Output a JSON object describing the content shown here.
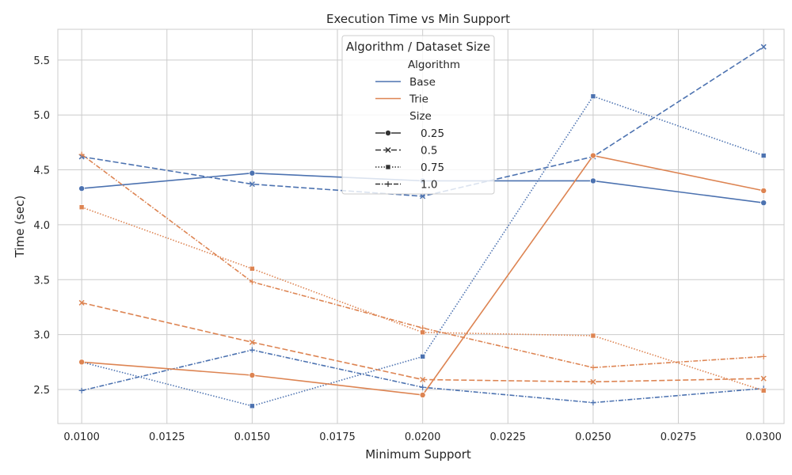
{
  "chart_data": {
    "type": "line",
    "title": "Execution Time vs Min Support",
    "xlabel": "Minimum Support",
    "ylabel": "Time (sec)",
    "x": [
      0.01,
      0.015,
      0.02,
      0.025,
      0.03
    ],
    "xlim": [
      0.0093,
      0.0306
    ],
    "ylim": [
      2.19,
      5.78
    ],
    "xticks": [
      "0.0100",
      "0.0125",
      "0.0150",
      "0.0175",
      "0.0200",
      "0.0225",
      "0.0250",
      "0.0275",
      "0.0300"
    ],
    "xtick_values": [
      0.01,
      0.0125,
      0.015,
      0.0175,
      0.02,
      0.0225,
      0.025,
      0.0275,
      0.03
    ],
    "yticks": [
      "2.5",
      "3.0",
      "3.5",
      "4.0",
      "4.5",
      "5.0",
      "5.5"
    ],
    "ytick_values": [
      2.5,
      3.0,
      3.5,
      4.0,
      4.5,
      5.0,
      5.5
    ],
    "grid": true,
    "legend_placement": "top-center",
    "colors": {
      "Base": "#4c72b0",
      "Trie": "#dd8452"
    },
    "series": [
      {
        "algorithm": "Base",
        "size": "0.25",
        "values": [
          4.33,
          4.47,
          4.4,
          4.4,
          4.2
        ]
      },
      {
        "algorithm": "Base",
        "size": "0.5",
        "values": [
          4.62,
          4.37,
          4.26,
          4.62,
          5.62
        ]
      },
      {
        "algorithm": "Base",
        "size": "0.75",
        "values": [
          2.75,
          2.35,
          2.8,
          5.17,
          4.63
        ]
      },
      {
        "algorithm": "Base",
        "size": "1.0",
        "values": [
          2.49,
          2.86,
          2.52,
          2.38,
          2.51
        ]
      },
      {
        "algorithm": "Trie",
        "size": "0.25",
        "values": [
          2.75,
          2.63,
          2.45,
          4.63,
          4.31
        ]
      },
      {
        "algorithm": "Trie",
        "size": "0.5",
        "values": [
          3.29,
          2.93,
          2.59,
          2.57,
          2.6
        ]
      },
      {
        "algorithm": "Trie",
        "size": "0.75",
        "values": [
          4.16,
          3.6,
          3.02,
          2.99,
          2.49
        ]
      },
      {
        "algorithm": "Trie",
        "size": "1.0",
        "values": [
          4.64,
          3.48,
          3.06,
          2.7,
          2.8
        ]
      }
    ],
    "legend": {
      "title": "Algorithm / Dataset Size",
      "hue_title": "Algorithm",
      "hue_entries": [
        "Base",
        "Trie"
      ],
      "style_title": "Size",
      "style_entries": [
        "0.25",
        "0.5",
        "0.75",
        "1.0"
      ],
      "style_markers": [
        "circle",
        "x",
        "square",
        "plus"
      ],
      "style_dashes": [
        "solid",
        "dashed",
        "dotted",
        "dashdot"
      ]
    }
  }
}
